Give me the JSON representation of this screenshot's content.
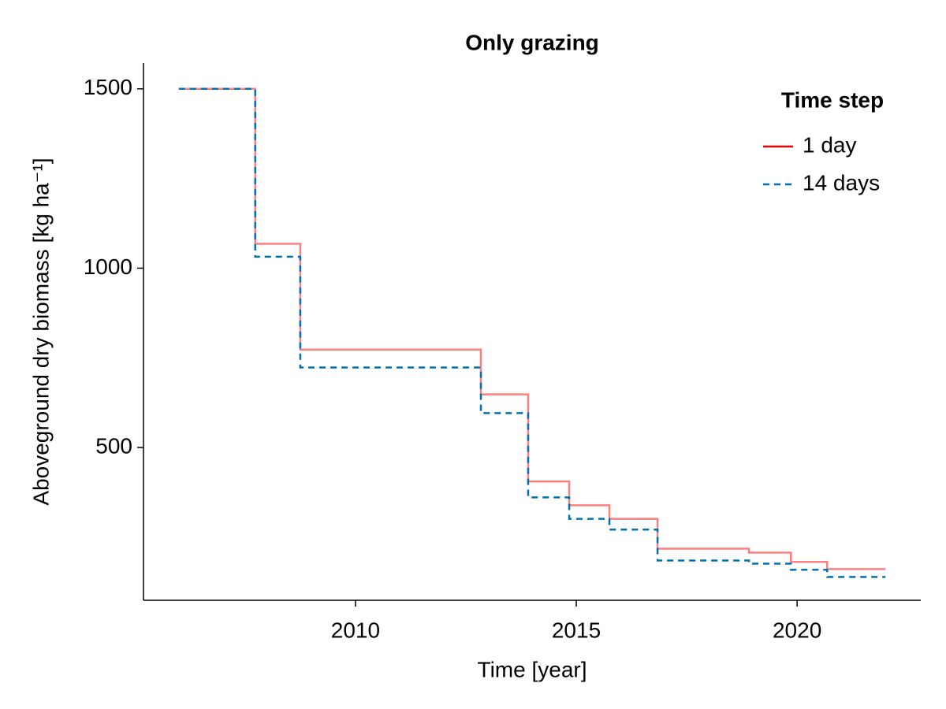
{
  "chart_data": {
    "type": "line",
    "title": "Only grazing",
    "xlabel": "Time [year]",
    "ylabel": "Aboveground dry biomass [kg ha⁻¹]",
    "xlim": [
      2005.2,
      2022.8
    ],
    "xticks": [
      2010,
      2015,
      2020
    ],
    "ylim": [
      74,
      1572
    ],
    "yticks": [
      500,
      1000,
      1500
    ],
    "grid": false,
    "legend_title": "Time step",
    "legend_position": "upper right",
    "series": [
      {
        "name": "1 day",
        "color": "#ff0000",
        "line_opacity": 0.5,
        "dash": "solid",
        "x": [
          2006,
          2007.73,
          2007.73,
          2008.75,
          2008.75,
          2012.84,
          2012.84,
          2013.91,
          2013.91,
          2014.84,
          2014.84,
          2015.75,
          2015.75,
          2016.84,
          2016.84,
          2018.91,
          2018.91,
          2019.86,
          2019.86,
          2020.68,
          2020.68,
          2022
        ],
        "values": [
          1500,
          1500,
          1068,
          1068,
          773,
          773,
          648,
          648,
          405,
          405,
          339,
          339,
          301,
          301,
          218,
          218,
          207,
          207,
          181,
          181,
          161,
          161
        ]
      },
      {
        "name": "14 days",
        "color": "#0072b2",
        "line_opacity": 1,
        "dash": "dashed",
        "x": [
          2006,
          2007.73,
          2007.73,
          2008.75,
          2008.75,
          2012.84,
          2012.84,
          2013.91,
          2013.91,
          2014.84,
          2014.84,
          2015.75,
          2015.75,
          2016.84,
          2016.84,
          2018.91,
          2018.91,
          2019.86,
          2019.86,
          2020.68,
          2020.68,
          2022
        ],
        "values": [
          1500,
          1500,
          1032,
          1032,
          723,
          723,
          596,
          596,
          361,
          361,
          301,
          301,
          271,
          271,
          185,
          185,
          176,
          176,
          159,
          159,
          139,
          139
        ]
      }
    ]
  }
}
